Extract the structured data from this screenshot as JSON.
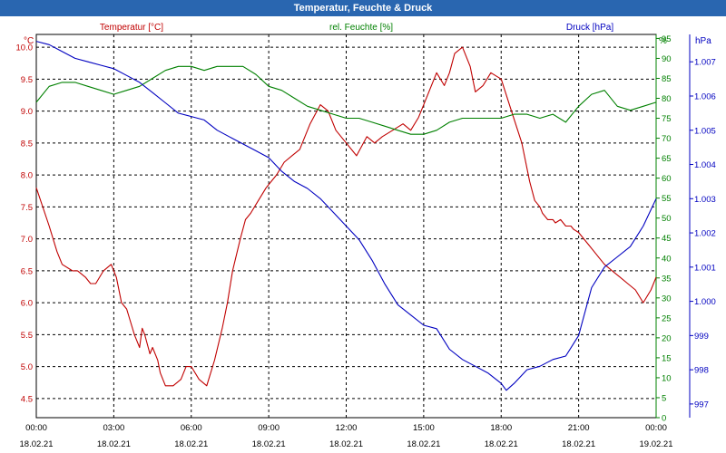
{
  "window": {
    "title": "Temperatur, Feuchte & Druck"
  },
  "colors": {
    "temperature": "#c00000",
    "humidity": "#008000",
    "pressure": "#0000c0",
    "grid": "#000000",
    "titlebar": "#2966b0"
  },
  "chart_data": {
    "type": "line",
    "title": "Temperatur, Feuchte & Druck",
    "grid": true,
    "x_ticks": [
      {
        "time": "00:00",
        "date": "18.02.21"
      },
      {
        "time": "03:00",
        "date": "18.02.21"
      },
      {
        "time": "06:00",
        "date": "18.02.21"
      },
      {
        "time": "09:00",
        "date": "18.02.21"
      },
      {
        "time": "12:00",
        "date": "18.02.21"
      },
      {
        "time": "15:00",
        "date": "18.02.21"
      },
      {
        "time": "18:00",
        "date": "18.02.21"
      },
      {
        "time": "21:00",
        "date": "18.02.21"
      },
      {
        "time": "00:00",
        "date": "19.02.21"
      }
    ],
    "x_range_hours": [
      0,
      24
    ],
    "axes": {
      "temperature": {
        "unit": "°C",
        "ylim": [
          4.2,
          10.2
        ],
        "ticks": [
          "4.5",
          "5.0",
          "5.5",
          "6.0",
          "6.5",
          "7.0",
          "7.5",
          "8.0",
          "8.5",
          "9.0",
          "9.5",
          "10.0"
        ]
      },
      "humidity": {
        "unit": "%",
        "ylim": [
          0,
          96
        ],
        "ticks": [
          "0",
          "5",
          "10",
          "15",
          "20",
          "25",
          "30",
          "35",
          "40",
          "45",
          "50",
          "55",
          "60",
          "65",
          "70",
          "75",
          "80",
          "85",
          "90",
          "95"
        ]
      },
      "pressure": {
        "unit": "hPa",
        "ylim": [
          996.6,
          1007.8
        ],
        "ticks": [
          "997",
          "998",
          "999",
          "1.000",
          "1.001",
          "1.002",
          "1.003",
          "1.004",
          "1.005",
          "1.006",
          "1.007"
        ]
      }
    },
    "series": [
      {
        "name": "Temperatur [°C]",
        "axis": "temperature",
        "color": "#c00000",
        "x": [
          0,
          0.5,
          0.8,
          1,
          1.4,
          1.6,
          1.9,
          2.1,
          2.3,
          2.6,
          2.9,
          3.1,
          3.3,
          3.5,
          3.8,
          4,
          4.1,
          4.2,
          4.4,
          4.5,
          4.7,
          4.8,
          5,
          5.3,
          5.6,
          5.8,
          6,
          6.3,
          6.6,
          6.9,
          7.2,
          7.4,
          7.6,
          7.9,
          8.1,
          8.3,
          8.6,
          8.9,
          9.1,
          9.3,
          9.6,
          9.9,
          10.2,
          10.6,
          11,
          11.3,
          11.6,
          12,
          12.4,
          12.8,
          13.1,
          13.4,
          13.8,
          14.2,
          14.5,
          14.8,
          15,
          15.2,
          15.5,
          15.8,
          16,
          16.2,
          16.5,
          16.8,
          17,
          17.3,
          17.6,
          18,
          18.4,
          18.8,
          19.1,
          19.3,
          19.5,
          19.6,
          19.8,
          20,
          20.1,
          20.3,
          20.5,
          20.7,
          20.8,
          21,
          21.2,
          21.4,
          21.6,
          21.8,
          22,
          22.3,
          22.6,
          22.9,
          23.2,
          23.5,
          23.8,
          24
        ],
        "values": [
          7.8,
          7.2,
          6.8,
          6.6,
          6.5,
          6.5,
          6.4,
          6.3,
          6.3,
          6.5,
          6.6,
          6.4,
          6.0,
          5.9,
          5.5,
          5.3,
          5.6,
          5.5,
          5.2,
          5.3,
          5.1,
          4.9,
          4.7,
          4.7,
          4.8,
          5.0,
          5.0,
          4.8,
          4.7,
          5.1,
          5.6,
          6.0,
          6.5,
          7.0,
          7.3,
          7.4,
          7.6,
          7.8,
          7.9,
          8.0,
          8.2,
          8.3,
          8.4,
          8.8,
          9.1,
          9.0,
          8.7,
          8.5,
          8.3,
          8.6,
          8.5,
          8.6,
          8.7,
          8.8,
          8.7,
          8.9,
          9.1,
          9.3,
          9.6,
          9.4,
          9.6,
          9.9,
          10.0,
          9.7,
          9.3,
          9.4,
          9.6,
          9.5,
          9.0,
          8.5,
          7.9,
          7.6,
          7.5,
          7.4,
          7.3,
          7.3,
          7.25,
          7.3,
          7.2,
          7.2,
          7.15,
          7.1,
          7.0,
          6.9,
          6.8,
          6.7,
          6.6,
          6.5,
          6.4,
          6.3,
          6.2,
          6.0,
          6.2,
          6.4
        ]
      },
      {
        "name": "rel. Feuchte [%]",
        "axis": "humidity",
        "color": "#008000",
        "x": [
          0,
          0.5,
          1,
          1.5,
          2,
          2.5,
          3,
          3.5,
          4,
          4.5,
          5,
          5.5,
          6,
          6.5,
          7,
          7.5,
          8,
          8.5,
          9,
          9.5,
          10,
          10.5,
          11,
          11.5,
          12,
          12.5,
          13,
          13.5,
          14,
          14.5,
          15,
          15.5,
          16,
          16.5,
          17,
          17.5,
          18,
          18.5,
          19,
          19.5,
          20,
          20.5,
          21,
          21.5,
          22,
          22.5,
          23,
          23.5,
          24
        ],
        "values": [
          79,
          83,
          84,
          84,
          83,
          82,
          81,
          82,
          83,
          85,
          87,
          88,
          88,
          87,
          88,
          88,
          88,
          86,
          83,
          82,
          80,
          78,
          77,
          76,
          75,
          75,
          74,
          73,
          72,
          71,
          71,
          72,
          74,
          75,
          75,
          75,
          75,
          76,
          76,
          75,
          76,
          74,
          78,
          81,
          82,
          78,
          77,
          78,
          79
        ]
      },
      {
        "name": "Druck [hPa]",
        "axis": "pressure",
        "color": "#0000c0",
        "x": [
          0,
          0.5,
          1,
          1.5,
          2,
          2.5,
          3,
          3.5,
          4,
          4.5,
          5,
          5.5,
          6,
          6.5,
          7,
          7.5,
          8,
          8.5,
          9,
          9.5,
          10,
          10.5,
          11,
          11.5,
          12,
          12.5,
          13,
          13.5,
          14,
          14.5,
          15,
          15.5,
          16,
          16.5,
          17,
          17.5,
          18,
          18.2,
          18.5,
          19,
          19.5,
          20,
          20.5,
          21,
          21.5,
          22,
          22.5,
          23,
          23.5,
          24
        ],
        "values": [
          1007.6,
          1007.5,
          1007.3,
          1007.1,
          1007.0,
          1006.9,
          1006.8,
          1006.6,
          1006.4,
          1006.1,
          1005.8,
          1005.5,
          1005.4,
          1005.3,
          1005.0,
          1004.8,
          1004.6,
          1004.4,
          1004.2,
          1003.8,
          1003.5,
          1003.3,
          1003.0,
          1002.6,
          1002.2,
          1001.8,
          1001.2,
          1000.5,
          999.9,
          999.6,
          999.3,
          999.2,
          998.6,
          998.3,
          998.1,
          997.9,
          997.6,
          997.4,
          997.6,
          998.0,
          998.1,
          998.3,
          998.4,
          999.0,
          1000.4,
          1001.0,
          1001.3,
          1001.6,
          1002.2,
          1003.0
        ]
      }
    ]
  }
}
